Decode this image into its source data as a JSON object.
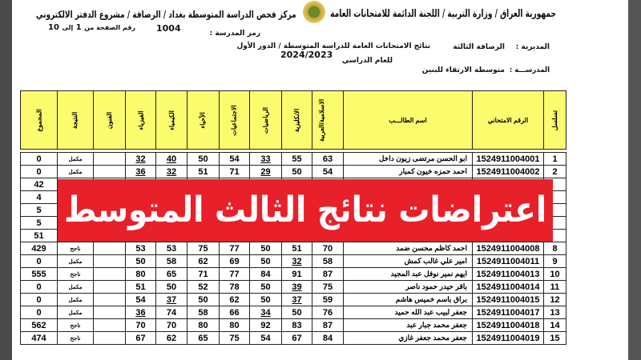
{
  "header": {
    "republic_line": "جمهورية العراق / وزارة التربية / اللجنة الدائمة للامتحانات العامة",
    "center_line": "مركز فحص الدراسة المتوسطة بغداد / الرصافة / مشروع الدفتر الالكتروني",
    "directorate_label": "المديرية :",
    "directorate_value": "الرصافة الثالثة",
    "school_label": "المدرســـة :",
    "school_value": "متوسطة الارتقاء للبنين",
    "results_title": "نتائج الامتحانات العامة للدراسة المتوسطة / الدور الأول",
    "year_label": "للعام الدراسي",
    "year_value": "2024/2023",
    "school_code_label": "رمز المدرسة :",
    "school_code_value": "1004",
    "page_label": "رقم الصفحة من",
    "page_from": "1",
    "page_to_label": "إلى",
    "page_to": "10"
  },
  "table": {
    "columns": [
      "تسلسل",
      "الرقم الامتحاني",
      "اسم الطالـــب",
      "الاسلامية/العربية",
      "الانكليزية",
      "الرياضيات",
      "الاجتماعيات",
      "الأحياء",
      "الكيمياء",
      "الفيزياء",
      "الفنون",
      "النتيجة",
      "المجموع"
    ],
    "rows": [
      {
        "seq": "1",
        "exam_no": "1524911004001",
        "name": "ابو الحسن مرتضى زيون داخل",
        "marks": [
          "63",
          "55",
          "33",
          "54",
          "50",
          "40",
          "32"
        ],
        "arts": "",
        "result": "مكمل",
        "total": "0"
      },
      {
        "seq": "2",
        "exam_no": "1524911004002",
        "name": "احمد حمزه خيون كمبار",
        "marks": [
          "54",
          "50",
          "29",
          "71",
          "51",
          "32",
          "36"
        ],
        "arts": "",
        "result": "مكمل",
        "total": "0"
      },
      {
        "seq": "",
        "exam_no": "",
        "name": "",
        "marks": [
          "",
          "",
          "",
          "",
          "",
          "",
          ""
        ],
        "arts": "",
        "result": "",
        "total": "42"
      },
      {
        "seq": "",
        "exam_no": "",
        "name": "",
        "marks": [
          "",
          "",
          "",
          "",
          "",
          "",
          ""
        ],
        "arts": "",
        "result": "",
        "total": "4"
      },
      {
        "seq": "",
        "exam_no": "",
        "name": "",
        "marks": [
          "",
          "",
          "",
          "",
          "",
          "",
          ""
        ],
        "arts": "",
        "result": "",
        "total": "5"
      },
      {
        "seq": "",
        "exam_no": "",
        "name": "",
        "marks": [
          "",
          "",
          "",
          "",
          "",
          "",
          ""
        ],
        "arts": "",
        "result": "",
        "total": "5"
      },
      {
        "seq": "",
        "exam_no": "",
        "name": "",
        "marks": [
          "",
          "",
          "",
          "",
          "",
          "",
          ""
        ],
        "arts": "",
        "result": "",
        "total": "51"
      },
      {
        "seq": "8",
        "exam_no": "1524911004008",
        "name": "احمد كاظم محسن ضمد",
        "marks": [
          "70",
          "51",
          "50",
          "77",
          "75",
          "53",
          "53"
        ],
        "arts": "",
        "result": "ناجح",
        "total": "429"
      },
      {
        "seq": "9",
        "exam_no": "1524911004011",
        "name": "امير علي غالب كمش",
        "marks": [
          "58",
          "32",
          "50",
          "69",
          "62",
          "58",
          "50"
        ],
        "arts": "",
        "result": "مكمل",
        "total": "0"
      },
      {
        "seq": "10",
        "exam_no": "1524911004013",
        "name": "ايهم نمير نوفل عبد المجيد",
        "marks": [
          "87",
          "91",
          "84",
          "77",
          "71",
          "65",
          "80"
        ],
        "arts": "",
        "result": "ناجح",
        "total": "555"
      },
      {
        "seq": "11",
        "exam_no": "1524911004014",
        "name": "باقر حيدر حمود ناصر",
        "marks": [
          "75",
          "39",
          "50",
          "78",
          "52",
          "50",
          "51"
        ],
        "arts": "",
        "result": "مكمل",
        "total": "0"
      },
      {
        "seq": "12",
        "exam_no": "1524911004015",
        "name": "براق باسم خميس هاشم",
        "marks": [
          "59",
          "37",
          "50",
          "62",
          "50",
          "37",
          "54"
        ],
        "arts": "",
        "result": "مكمل",
        "total": "0"
      },
      {
        "seq": "13",
        "exam_no": "1524911004017",
        "name": "جعفر لبيب عبد الله حميد",
        "marks": [
          "76",
          "50",
          "34",
          "66",
          "58",
          "74",
          "36"
        ],
        "arts": "",
        "result": "مكمل",
        "total": "0"
      },
      {
        "seq": "14",
        "exam_no": "1524911004018",
        "name": "جعفر محمد جبار عبد",
        "marks": [
          "87",
          "83",
          "92",
          "80",
          "80",
          "70",
          "70"
        ],
        "arts": "",
        "result": "ناجح",
        "total": "562"
      },
      {
        "seq": "15",
        "exam_no": "1524911004019",
        "name": "جعفر محمد جعفر غازي",
        "marks": [
          "84",
          "67",
          "54",
          "75",
          "65",
          "62",
          "67"
        ],
        "arts": "",
        "result": "ناجح",
        "total": "474"
      }
    ]
  },
  "banner": {
    "text": "اعتراضات نتائج الثالث المتوسط",
    "color": "#e8202a"
  },
  "colors": {
    "header_fill": "#fbfb6e"
  },
  "logo_icon": "iraq-emblem"
}
